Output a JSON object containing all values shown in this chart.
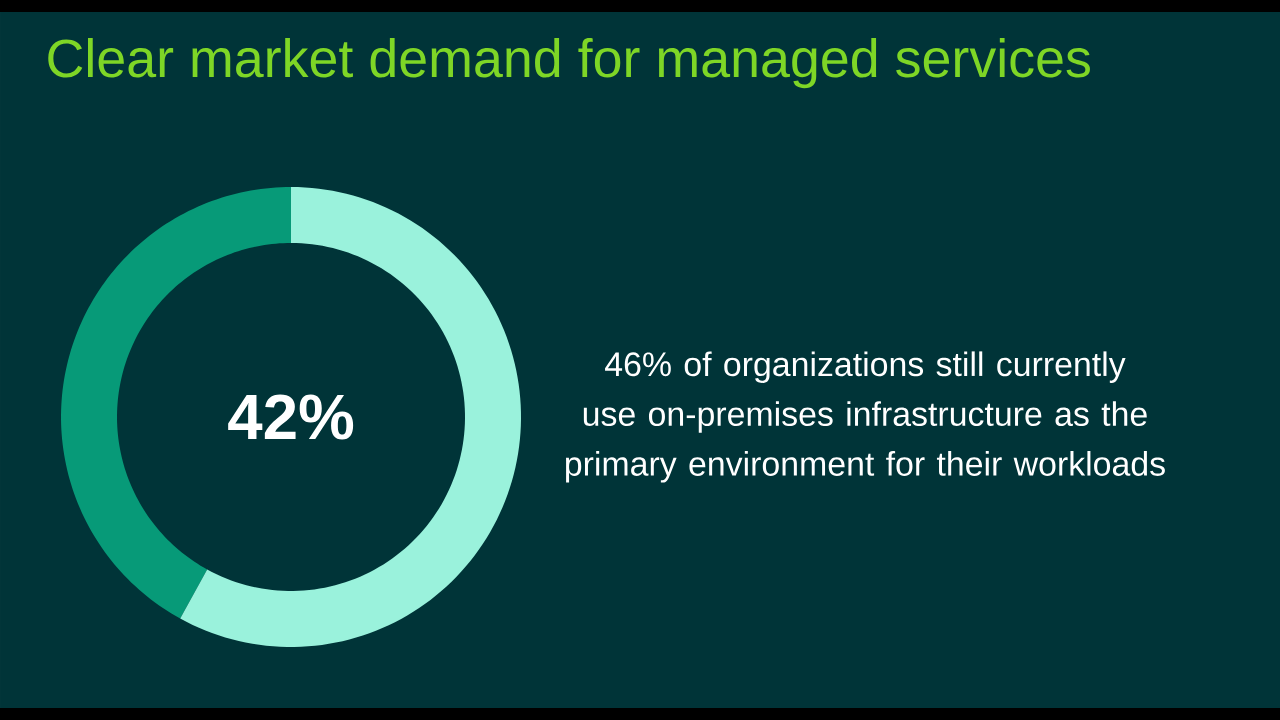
{
  "chart_data": {
    "type": "donut",
    "title": "Clear market demand for managed services",
    "categories": [
      null,
      null
    ],
    "values": [
      42,
      58
    ],
    "colors": [
      "#079a78",
      "#9af2dc"
    ],
    "value_labels": [
      "42%",
      null
    ],
    "annotations": [
      "46% of organizations still currently use on-premises infrastructure as the primary environment for their workloads"
    ]
  }
}
